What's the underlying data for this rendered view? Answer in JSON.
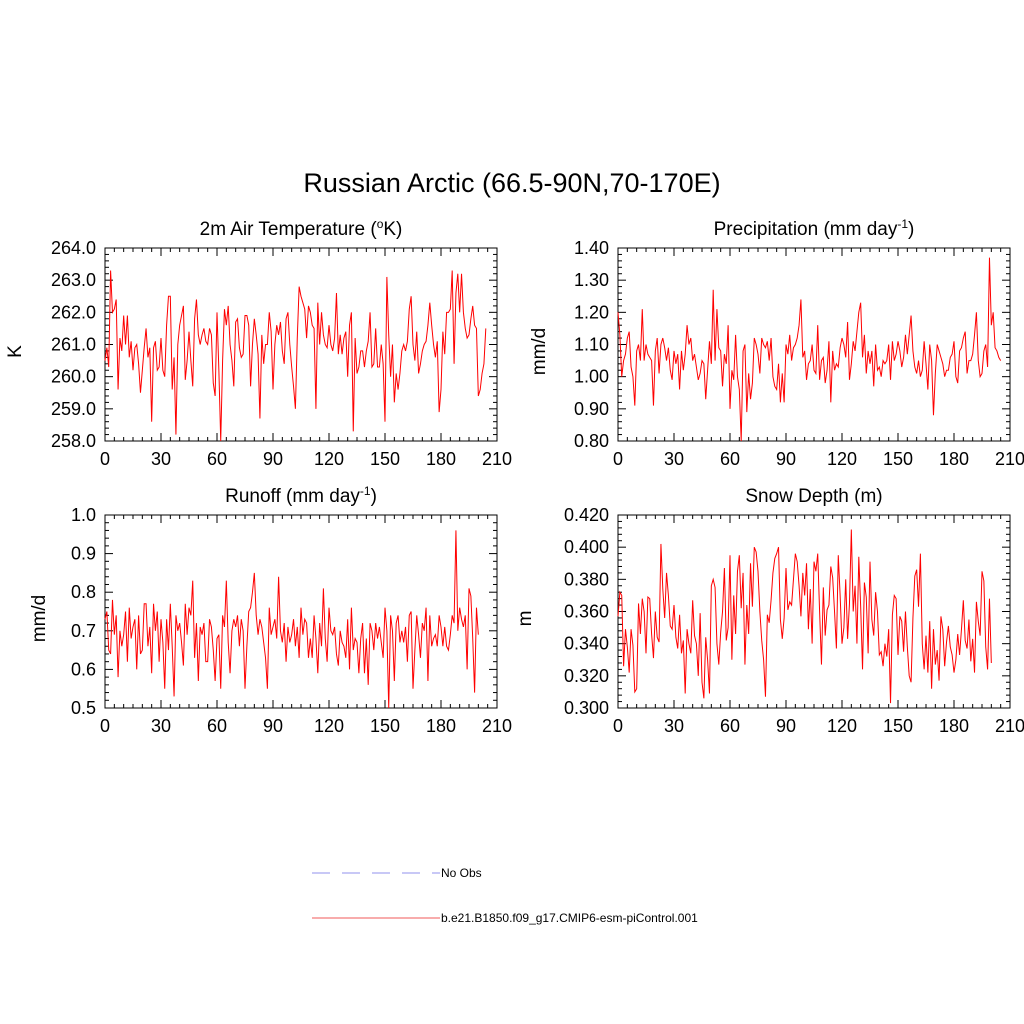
{
  "title": "Russian Arctic (66.5-90N,70-170E)",
  "legend": [
    {
      "label": "No Obs",
      "color": "#a6a6f0",
      "style": "dashed"
    },
    {
      "label": "b.e21.B1850.f09_g17.CMIP6-esm-piControl.001",
      "color": "#f47a7a",
      "style": "solid"
    }
  ],
  "colors": {
    "series": "#ff0000",
    "axis": "#000000"
  },
  "chart_data": [
    {
      "type": "line",
      "title": "2m Air Temperature (",
      "title_sup": "o",
      "title_suffix": "K)",
      "ylabel": "K",
      "xlim": [
        0,
        210
      ],
      "ylim": [
        258.0,
        264.0
      ],
      "xticks": [
        "0",
        "30",
        "60",
        "90",
        "120",
        "150",
        "180",
        "210"
      ],
      "yticks": [
        "258.0",
        "259.0",
        "260.0",
        "261.0",
        "262.0",
        "263.0",
        "264.0"
      ],
      "series": [
        {
          "name": "b.e21.B1850.f09_g17.CMIP6-esm-piControl.001",
          "values": [
            260.5,
            260.9,
            260.3,
            263.3,
            262.0,
            262.1,
            262.4,
            259.6,
            261.2,
            260.8,
            261.9,
            261.0,
            261.9,
            260.6,
            261.1,
            260.2,
            260.9,
            261.0,
            260.4,
            259.5,
            260.2,
            260.9,
            261.5,
            260.6,
            260.9,
            258.6,
            260.9,
            261.1,
            260.2,
            260.3,
            261.2,
            260.2,
            260.0,
            261.6,
            262.5,
            262.5,
            259.6,
            260.6,
            258.2,
            261.0,
            261.6,
            261.9,
            262.2,
            259.9,
            260.5,
            261.4,
            260.5,
            259.7,
            261.8,
            262.4,
            261.3,
            261.0,
            261.3,
            261.5,
            261.1,
            261.0,
            261.5,
            261.3,
            259.8,
            259.4,
            262.0,
            260.2,
            258.0,
            260.5,
            262.1,
            261.6,
            262.2,
            261.0,
            260.5,
            259.7,
            261.7,
            261.8,
            260.9,
            260.6,
            260.7,
            261.9,
            261.9,
            261.6,
            259.7,
            261.0,
            261.8,
            261.3,
            260.7,
            258.7,
            261.3,
            260.4,
            261.0,
            261.0,
            262.0,
            261.4,
            259.6,
            261.0,
            261.6,
            261.3,
            261.7,
            260.8,
            260.4,
            261.8,
            262.0,
            261.0,
            260.3,
            259.7,
            259.0,
            261.2,
            262.8,
            262.5,
            262.3,
            262.1,
            261.2,
            262.2,
            262.0,
            261.6,
            261.5,
            259.0,
            262.3,
            261.0,
            262.0,
            261.3,
            261.0,
            260.9,
            261.6,
            261.0,
            260.8,
            261.2,
            262.6,
            260.7,
            261.3,
            260.7,
            261.2,
            261.4,
            260.0,
            261.6,
            262.0,
            258.3,
            261.2,
            260.1,
            260.3,
            260.8,
            260.8,
            260.3,
            260.8,
            261.1,
            262.0,
            260.3,
            260.4,
            261.5,
            260.3,
            260.3,
            261.0,
            260.4,
            258.6,
            263.1,
            261.3,
            260.0,
            261.0,
            259.2,
            260.1,
            259.6,
            260.1,
            260.8,
            261.0,
            260.8,
            261.1,
            262.1,
            262.5,
            261.0,
            260.5,
            261.4,
            260.1,
            260.4,
            260.8,
            261.0,
            261.1,
            261.6,
            262.3,
            261.6,
            261.0,
            260.6,
            261.1,
            258.9,
            259.6,
            261.4,
            260.7,
            262.0,
            262.0,
            262.1,
            263.3,
            260.4,
            262.6,
            263.2,
            262.0,
            263.2,
            262.0,
            261.5,
            261.2,
            261.3,
            261.8,
            262.2,
            261.6,
            261.5,
            259.4,
            259.6,
            260.1,
            260.4,
            261.5
          ]
        }
      ]
    },
    {
      "type": "line",
      "title": "Precipitation (mm day",
      "title_sup": "-1",
      "title_suffix": ")",
      "ylabel": "mm/d",
      "xlim": [
        0,
        210
      ],
      "ylim": [
        0.8,
        1.4
      ],
      "xticks": [
        "0",
        "30",
        "60",
        "90",
        "120",
        "150",
        "180",
        "210"
      ],
      "yticks": [
        "0.80",
        "0.90",
        "1.00",
        "1.10",
        "1.20",
        "1.30",
        "1.40"
      ],
      "series": [
        {
          "name": "b.e21.B1850.f09_g17.CMIP6-esm-piControl.001",
          "values": [
            1.2,
            1.13,
            1.0,
            1.05,
            1.07,
            1.12,
            1.14,
            1.03,
            1.0,
            0.91,
            1.08,
            1.1,
            1.05,
            1.21,
            1.05,
            1.1,
            1.07,
            1.06,
            1.05,
            0.91,
            1.08,
            1.12,
            1.01,
            1.1,
            1.12,
            1.09,
            1.05,
            1.09,
            1.02,
            0.99,
            1.08,
            1.04,
            1.07,
            0.96,
            1.08,
            1.02,
            1.07,
            1.16,
            1.1,
            1.12,
            1.05,
            1.07,
            1.03,
            0.99,
            1.01,
            1.05,
            1.04,
            0.93,
            1.02,
            1.11,
            1.04,
            1.27,
            1.05,
            1.21,
            1.09,
            1.08,
            0.97,
            1.07,
            1.04,
            1.16,
            0.9,
            1.02,
            0.99,
            1.13,
            1.0,
            0.96,
            0.8,
            1.08,
            1.1,
            0.89,
            1.01,
            0.93,
            0.98,
            1.12,
            1.1,
            1.07,
            1.01,
            1.12,
            1.1,
            1.09,
            1.11,
            1.05,
            1.12,
            1.0,
            0.97,
            0.96,
            1.04,
            0.92,
            1.01,
            0.92,
            1.1,
            1.07,
            1.13,
            1.05,
            1.09,
            1.1,
            1.12,
            1.16,
            1.24,
            1.06,
            1.08,
            0.99,
            1.04,
            1.05,
            1.1,
            1.02,
            1.01,
            1.16,
            0.99,
            1.05,
            1.06,
            0.98,
            1.02,
            1.11,
            0.92,
            1.08,
            1.02,
            1.04,
            1.03,
            1.09,
            1.12,
            1.1,
            1.06,
            1.17,
            0.99,
            1.04,
            1.11,
            1.08,
            1.14,
            1.2,
            1.23,
            1.06,
            1.13,
            1.01,
            1.08,
            1.04,
            1.08,
            0.97,
            1.1,
            1.02,
            1.03,
            1.0,
            1.05,
            1.04,
            1.05,
            1.1,
            0.99,
            1.11,
            1.05,
            1.07,
            1.11,
            1.08,
            1.03,
            1.06,
            1.13,
            1.07,
            1.13,
            1.19,
            1.08,
            1.03,
            1.01,
            1.05,
            1.0,
            1.02,
            1.11,
            1.04,
            0.96,
            1.1,
            1.05,
            0.88,
            1.01,
            1.1,
            1.08,
            1.06,
            1.04,
            1.0,
            1.02,
            1.02,
            1.06,
            1.07,
            1.11,
            1.0,
            0.98,
            1.08,
            1.09,
            1.12,
            1.14,
            1.01,
            1.05,
            1.05,
            1.07,
            1.13,
            1.2,
            1.05,
            1.0,
            1.01,
            1.08,
            1.1,
            1.03,
            1.37,
            1.16,
            1.2,
            1.09,
            1.08,
            1.06,
            1.05
          ]
        }
      ]
    },
    {
      "type": "line",
      "title": "Runoff (mm day",
      "title_sup": "-1",
      "title_suffix": ")",
      "ylabel": "mm/d",
      "xlim": [
        0,
        210
      ],
      "ylim": [
        0.5,
        1.0
      ],
      "xticks": [
        "0",
        "30",
        "60",
        "90",
        "120",
        "150",
        "180",
        "210"
      ],
      "yticks": [
        "0.5",
        "0.6",
        "0.7",
        "0.8",
        "0.9",
        "1.0"
      ],
      "series": [
        {
          "name": "b.e21.B1850.f09_g17.CMIP6-esm-piControl.001",
          "values": [
            0.73,
            0.75,
            0.65,
            0.64,
            0.78,
            0.69,
            0.74,
            0.58,
            0.7,
            0.66,
            0.69,
            0.75,
            0.62,
            0.76,
            0.68,
            0.71,
            0.73,
            0.6,
            0.74,
            0.64,
            0.65,
            0.77,
            0.77,
            0.66,
            0.71,
            0.59,
            0.77,
            0.7,
            0.75,
            0.62,
            0.73,
            0.67,
            0.55,
            0.73,
            0.65,
            0.77,
            0.66,
            0.53,
            0.74,
            0.7,
            0.72,
            0.67,
            0.61,
            0.77,
            0.69,
            0.76,
            0.74,
            0.83,
            0.63,
            0.72,
            0.57,
            0.71,
            0.69,
            0.72,
            0.62,
            0.62,
            0.73,
            0.71,
            0.65,
            0.57,
            0.68,
            0.69,
            0.55,
            0.74,
            0.71,
            0.83,
            0.67,
            0.59,
            0.7,
            0.73,
            0.71,
            0.74,
            0.66,
            0.73,
            0.7,
            0.55,
            0.66,
            0.75,
            0.76,
            0.8,
            0.85,
            0.74,
            0.69,
            0.73,
            0.71,
            0.67,
            0.63,
            0.55,
            0.76,
            0.69,
            0.71,
            0.73,
            0.68,
            0.84,
            0.7,
            0.67,
            0.72,
            0.62,
            0.71,
            0.67,
            0.69,
            0.73,
            0.66,
            0.71,
            0.63,
            0.76,
            0.69,
            0.73,
            0.72,
            0.63,
            0.68,
            0.63,
            0.74,
            0.68,
            0.59,
            0.72,
            0.66,
            0.81,
            0.68,
            0.62,
            0.76,
            0.7,
            0.69,
            0.71,
            0.64,
            0.61,
            0.7,
            0.67,
            0.66,
            0.63,
            0.73,
            0.6,
            0.76,
            0.65,
            0.68,
            0.67,
            0.59,
            0.68,
            0.72,
            0.59,
            0.68,
            0.56,
            0.72,
            0.7,
            0.65,
            0.72,
            0.68,
            0.71,
            0.67,
            0.63,
            0.76,
            0.7,
            0.5,
            0.74,
            0.7,
            0.57,
            0.72,
            0.74,
            0.67,
            0.7,
            0.67,
            0.71,
            0.62,
            0.74,
            0.75,
            0.55,
            0.65,
            0.74,
            0.69,
            0.63,
            0.72,
            0.7,
            0.76,
            0.57,
            0.74,
            0.66,
            0.68,
            0.69,
            0.66,
            0.74,
            0.71,
            0.66,
            0.71,
            0.66,
            0.65,
            0.69,
            0.74,
            0.72,
            0.96,
            0.7,
            0.76,
            0.73,
            0.71,
            0.74,
            0.6,
            0.81,
            0.79,
            0.68,
            0.54,
            0.76,
            0.69
          ]
        }
      ]
    },
    {
      "type": "line",
      "title": "Snow Depth (m)",
      "title_sup": "",
      "title_suffix": "",
      "ylabel": "m",
      "xlim": [
        0,
        210
      ],
      "ylim": [
        0.3,
        0.42
      ],
      "xticks": [
        "0",
        "30",
        "60",
        "90",
        "120",
        "150",
        "180",
        "210"
      ],
      "yticks": [
        "0.300",
        "0.320",
        "0.340",
        "0.360",
        "0.380",
        "0.400",
        "0.420"
      ],
      "series": [
        {
          "name": "b.e21.B1850.f09_g17.CMIP6-esm-piControl.001",
          "values": [
            0.357,
            0.372,
            0.37,
            0.326,
            0.349,
            0.338,
            0.322,
            0.349,
            0.339,
            0.31,
            0.312,
            0.365,
            0.346,
            0.368,
            0.36,
            0.334,
            0.369,
            0.368,
            0.346,
            0.331,
            0.36,
            0.344,
            0.341,
            0.402,
            0.374,
            0.356,
            0.384,
            0.37,
            0.351,
            0.349,
            0.364,
            0.344,
            0.337,
            0.358,
            0.334,
            0.342,
            0.309,
            0.349,
            0.34,
            0.334,
            0.367,
            0.345,
            0.34,
            0.32,
            0.359,
            0.316,
            0.306,
            0.344,
            0.33,
            0.309,
            0.376,
            0.38,
            0.375,
            0.34,
            0.327,
            0.347,
            0.36,
            0.387,
            0.342,
            0.35,
            0.395,
            0.33,
            0.37,
            0.346,
            0.385,
            0.395,
            0.362,
            0.384,
            0.327,
            0.364,
            0.346,
            0.39,
            0.363,
            0.4,
            0.397,
            0.385,
            0.36,
            0.342,
            0.33,
            0.307,
            0.358,
            0.353,
            0.367,
            0.384,
            0.393,
            0.396,
            0.4,
            0.355,
            0.343,
            0.356,
            0.387,
            0.361,
            0.366,
            0.364,
            0.38,
            0.396,
            0.391,
            0.376,
            0.357,
            0.384,
            0.37,
            0.39,
            0.349,
            0.374,
            0.34,
            0.391,
            0.385,
            0.396,
            0.36,
            0.327,
            0.375,
            0.345,
            0.361,
            0.364,
            0.388,
            0.381,
            0.36,
            0.337,
            0.395,
            0.37,
            0.34,
            0.35,
            0.38,
            0.343,
            0.365,
            0.411,
            0.36,
            0.376,
            0.34,
            0.394,
            0.363,
            0.324,
            0.378,
            0.369,
            0.334,
            0.391,
            0.355,
            0.345,
            0.372,
            0.36,
            0.333,
            0.335,
            0.326,
            0.34,
            0.332,
            0.349,
            0.303,
            0.358,
            0.37,
            0.368,
            0.333,
            0.357,
            0.354,
            0.335,
            0.36,
            0.338,
            0.32,
            0.316,
            0.356,
            0.382,
            0.386,
            0.363,
            0.396,
            0.34,
            0.324,
            0.345,
            0.322,
            0.354,
            0.312,
            0.349,
            0.327,
            0.336,
            0.317,
            0.357,
            0.349,
            0.326,
            0.341,
            0.351,
            0.338,
            0.333,
            0.322,
            0.33,
            0.346,
            0.333,
            0.349,
            0.367,
            0.342,
            0.337,
            0.355,
            0.329,
            0.343,
            0.322,
            0.366,
            0.354,
            0.345,
            0.385,
            0.379,
            0.338,
            0.324,
            0.368,
            0.328
          ]
        }
      ]
    }
  ]
}
